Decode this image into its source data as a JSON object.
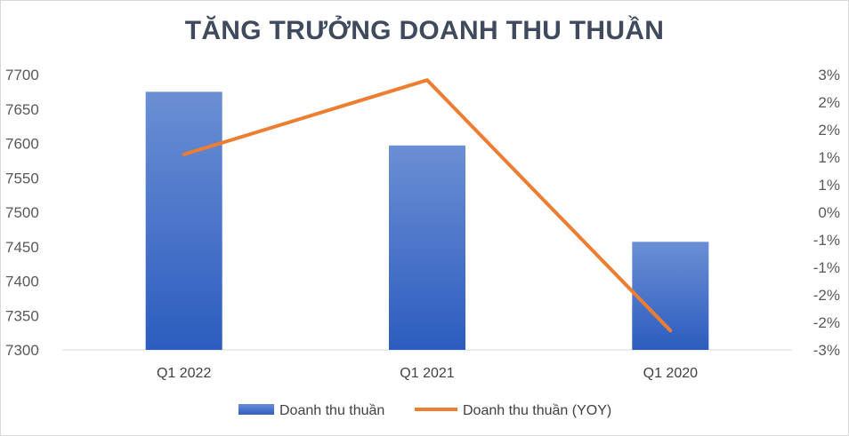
{
  "chart_data": {
    "type": "bar",
    "title": "TĂNG TRƯỞNG DOANH THU THUẦN",
    "categories": [
      "Q1 2022",
      "Q1 2021",
      "Q1 2020"
    ],
    "series": [
      {
        "name": "Doanh thu thuần",
        "type": "bar",
        "axis": "left",
        "values": [
          7675,
          7597,
          7457
        ],
        "color": "#4472c4"
      },
      {
        "name": "Doanh thu thuần (YOY)",
        "type": "line",
        "axis": "right",
        "values": [
          1.05,
          2.4,
          -2.15
        ],
        "color": "#ed7d31"
      }
    ],
    "y_left": {
      "min": 7300,
      "max": 7700,
      "ticks": [
        "7700",
        "7650",
        "7600",
        "7550",
        "7500",
        "7450",
        "7400",
        "7350",
        "7300"
      ]
    },
    "y_right": {
      "min": -2.5,
      "max": 2.5,
      "ticks": [
        "3%",
        "2%",
        "2%",
        "1%",
        "1%",
        "0%",
        "-1%",
        "-1%",
        "-2%",
        "-2%",
        "-3%"
      ]
    },
    "grid": false,
    "legend_position": "bottom"
  }
}
